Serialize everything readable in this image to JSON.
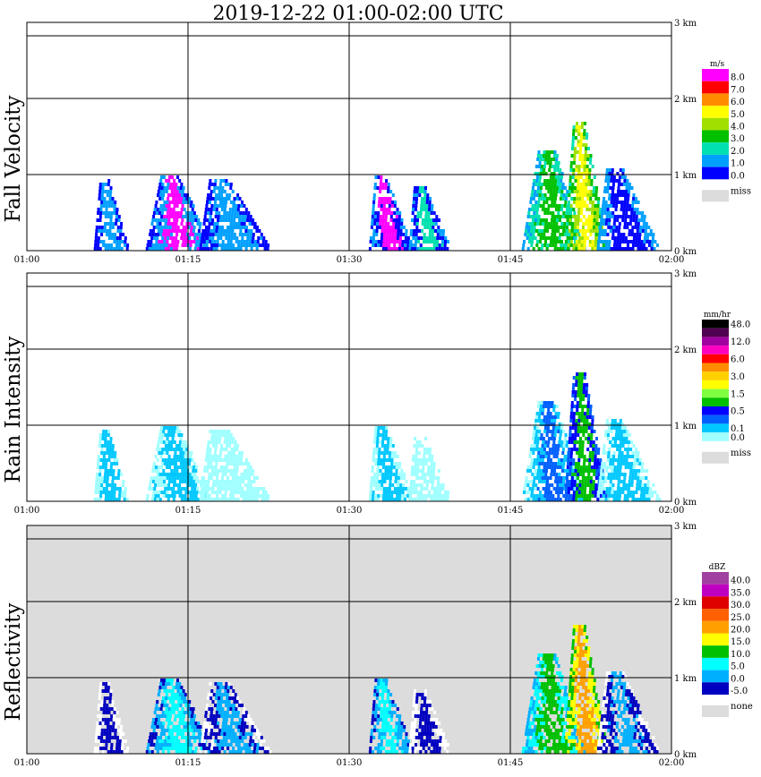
{
  "title": "2019-12-22   01:00-02:00 UTC",
  "colors": {
    "grid": "#000000",
    "missing_bg": "#dcdcdc"
  },
  "chart_data": [
    {
      "type": "heatmap",
      "panel": "fall-velocity",
      "ylabel": "Fall Velocity",
      "x_ticks": [
        "01:00",
        "01:15",
        "01:30",
        "01:45",
        "02:00"
      ],
      "y_ticks": [
        "0 km",
        "1 km",
        "2 km",
        "3 km"
      ],
      "xlim_minutes": [
        0,
        60
      ],
      "ylim_km": [
        0,
        3.0
      ],
      "background": "white",
      "colorbar": {
        "unit": "m/s",
        "entries": [
          {
            "label": "8.0",
            "color": "#ff00ff"
          },
          {
            "label": "7.0",
            "color": "#ff0000"
          },
          {
            "label": "6.0",
            "color": "#ff8c00"
          },
          {
            "label": "5.0",
            "color": "#ffff00"
          },
          {
            "label": "4.0",
            "color": "#a0e000"
          },
          {
            "label": "3.0",
            "color": "#00c000"
          },
          {
            "label": "2.0",
            "color": "#00e0b0"
          },
          {
            "label": "1.0",
            "color": "#00a0ff"
          },
          {
            "label": "0.0",
            "color": "#0000ff"
          }
        ],
        "missing_label": "miss",
        "missing_color": "#dcdcdc"
      },
      "echo_regions": [
        {
          "t0": 6.2,
          "t1": 9.5,
          "top_km": 0.95,
          "slant": 1.0,
          "colors": [
            "#0000ff",
            "#00a0ff"
          ]
        },
        {
          "t0": 11.0,
          "t1": 17.5,
          "top_km": 1.0,
          "slant": 1.5,
          "colors": [
            "#0000ff",
            "#00a0ff",
            "#ff00ff"
          ]
        },
        {
          "t0": 16.0,
          "t1": 23.0,
          "top_km": 0.95,
          "slant": 2.5,
          "colors": [
            "#0000ff",
            "#00a0ff"
          ]
        },
        {
          "t0": 31.8,
          "t1": 36.0,
          "top_km": 1.0,
          "slant": 1.5,
          "colors": [
            "#00a0ff",
            "#0000ff",
            "#ff00ff"
          ]
        },
        {
          "t0": 35.5,
          "t1": 39.5,
          "top_km": 0.85,
          "slant": 1.5,
          "colors": [
            "#00a0ff",
            "#0000ff",
            "#00e0b0"
          ]
        },
        {
          "t0": 46.0,
          "t1": 52.0,
          "top_km": 1.35,
          "slant": 1.0,
          "colors": [
            "#00a0ff",
            "#00e0b0",
            "#00c000"
          ]
        },
        {
          "t0": 50.0,
          "t1": 54.0,
          "top_km": 1.7,
          "slant": 1.0,
          "colors": [
            "#00e0b0",
            "#00c000",
            "#a0e000",
            "#ffff00"
          ]
        },
        {
          "t0": 53.0,
          "t1": 59.0,
          "top_km": 1.1,
          "slant": 2.0,
          "colors": [
            "#00a0ff",
            "#0000ff"
          ]
        }
      ]
    },
    {
      "type": "heatmap",
      "panel": "rain-intensity",
      "ylabel": "Rain Intensity",
      "x_ticks": [
        "01:00",
        "01:15",
        "01:30",
        "01:45",
        "02:00"
      ],
      "y_ticks": [
        "0 km",
        "1 km",
        "2 km",
        "3 km"
      ],
      "xlim_minutes": [
        0,
        60
      ],
      "ylim_km": [
        0,
        3.0
      ],
      "background": "white",
      "colorbar": {
        "unit": "mm/hr",
        "entries": [
          {
            "label": "48.0",
            "color": "#000000"
          },
          {
            "label": "",
            "color": "#500050"
          },
          {
            "label": "12.0",
            "color": "#a000a0"
          },
          {
            "label": "",
            "color": "#ff00c0"
          },
          {
            "label": "6.0",
            "color": "#ff0000"
          },
          {
            "label": "",
            "color": "#ff8c00"
          },
          {
            "label": "3.0",
            "color": "#ffd000"
          },
          {
            "label": "",
            "color": "#ffff00"
          },
          {
            "label": "1.5",
            "color": "#80ff40"
          },
          {
            "label": "",
            "color": "#00c000"
          },
          {
            "label": "0.5",
            "color": "#0000ff"
          },
          {
            "label": "",
            "color": "#0060ff"
          },
          {
            "label": "0.1",
            "color": "#00c8ff"
          },
          {
            "label": "0.0",
            "color": "#a0ffff"
          }
        ],
        "missing_label": "miss",
        "missing_color": "#dcdcdc"
      },
      "echo_regions": [
        {
          "t0": 6.2,
          "t1": 9.5,
          "top_km": 0.95,
          "slant": 1.0,
          "colors": [
            "#a0ffff",
            "#00c8ff"
          ]
        },
        {
          "t0": 11.0,
          "t1": 17.5,
          "top_km": 1.0,
          "slant": 1.5,
          "colors": [
            "#a0ffff",
            "#00c8ff"
          ]
        },
        {
          "t0": 16.0,
          "t1": 23.0,
          "top_km": 0.95,
          "slant": 2.5,
          "colors": [
            "#a0ffff"
          ]
        },
        {
          "t0": 31.8,
          "t1": 36.0,
          "top_km": 1.0,
          "slant": 1.5,
          "colors": [
            "#a0ffff",
            "#00c8ff"
          ]
        },
        {
          "t0": 35.5,
          "t1": 39.5,
          "top_km": 0.85,
          "slant": 1.5,
          "colors": [
            "#a0ffff"
          ]
        },
        {
          "t0": 46.0,
          "t1": 52.0,
          "top_km": 1.35,
          "slant": 1.0,
          "colors": [
            "#a0ffff",
            "#00c8ff",
            "#0060ff"
          ]
        },
        {
          "t0": 50.0,
          "t1": 54.0,
          "top_km": 1.7,
          "slant": 1.0,
          "colors": [
            "#0060ff",
            "#0000ff",
            "#00c000"
          ]
        },
        {
          "t0": 53.0,
          "t1": 59.0,
          "top_km": 1.1,
          "slant": 2.0,
          "colors": [
            "#a0ffff",
            "#00c8ff"
          ]
        }
      ]
    },
    {
      "type": "heatmap",
      "panel": "reflectivity",
      "ylabel": "Reflectivity",
      "x_ticks": [
        "01:00",
        "01:15",
        "01:30",
        "01:45",
        "02:00"
      ],
      "y_ticks": [
        "0 km",
        "1 km",
        "2 km",
        "3 km"
      ],
      "xlim_minutes": [
        0,
        60
      ],
      "ylim_km": [
        0,
        3.0
      ],
      "background": "gray",
      "colorbar": {
        "unit": "dBZ",
        "entries": [
          {
            "label": "40.0",
            "color": "#a040a0"
          },
          {
            "label": "35.0",
            "color": "#c000c0"
          },
          {
            "label": "30.0",
            "color": "#e00000"
          },
          {
            "label": "25.0",
            "color": "#ff6000"
          },
          {
            "label": "20.0",
            "color": "#ffa000"
          },
          {
            "label": "15.0",
            "color": "#ffff00"
          },
          {
            "label": "10.0",
            "color": "#00c000"
          },
          {
            "label": "5.0",
            "color": "#00ffff"
          },
          {
            "label": "0.0",
            "color": "#00b0ff"
          },
          {
            "label": "-5.0",
            "color": "#0000c0"
          }
        ],
        "missing_label": "none",
        "missing_color": "#dcdcdc"
      },
      "echo_regions": [
        {
          "t0": 6.2,
          "t1": 9.5,
          "top_km": 0.95,
          "slant": 1.0,
          "colors": [
            "#ffffff",
            "#0000c0"
          ]
        },
        {
          "t0": 11.0,
          "t1": 17.5,
          "top_km": 1.0,
          "slant": 1.5,
          "colors": [
            "#0000c0",
            "#00b0ff",
            "#00ffff"
          ]
        },
        {
          "t0": 16.0,
          "t1": 23.0,
          "top_km": 0.95,
          "slant": 2.5,
          "colors": [
            "#ffffff",
            "#0000c0",
            "#00b0ff"
          ]
        },
        {
          "t0": 31.8,
          "t1": 36.0,
          "top_km": 1.0,
          "slant": 1.5,
          "colors": [
            "#0000c0",
            "#00b0ff",
            "#00ffff"
          ]
        },
        {
          "t0": 35.5,
          "t1": 39.5,
          "top_km": 0.85,
          "slant": 1.5,
          "colors": [
            "#ffffff",
            "#0000c0"
          ]
        },
        {
          "t0": 46.0,
          "t1": 52.0,
          "top_km": 1.35,
          "slant": 1.0,
          "colors": [
            "#00b0ff",
            "#00ffff",
            "#00c000"
          ]
        },
        {
          "t0": 50.0,
          "t1": 54.0,
          "top_km": 1.7,
          "slant": 1.0,
          "colors": [
            "#00c000",
            "#ffff00",
            "#ffa000"
          ]
        },
        {
          "t0": 53.0,
          "t1": 59.0,
          "top_km": 1.1,
          "slant": 2.0,
          "colors": [
            "#ffffff",
            "#0000c0",
            "#00b0ff"
          ]
        }
      ]
    }
  ]
}
